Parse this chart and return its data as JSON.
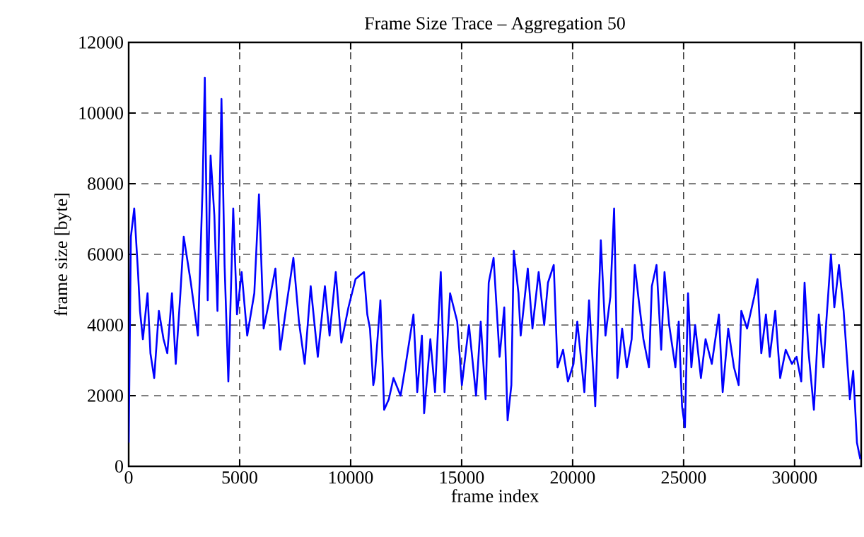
{
  "chart_data": {
    "type": "line",
    "title": "Frame Size Trace – Aggregation 50",
    "xlabel": "frame index",
    "ylabel": "frame size [byte]",
    "xlim": [
      0,
      33000
    ],
    "ylim": [
      0,
      12000
    ],
    "xticks": [
      0,
      5000,
      10000,
      15000,
      20000,
      25000,
      30000
    ],
    "yticks": [
      0,
      2000,
      4000,
      6000,
      8000,
      10000,
      12000
    ],
    "grid": true,
    "line_style": "solid",
    "marker": "none",
    "series": [
      {
        "color": "#0000ff",
        "x": [
          0,
          100,
          250,
          420,
          510,
          640,
          850,
          980,
          1150,
          1360,
          1570,
          1740,
          1950,
          2120,
          2330,
          2480,
          2800,
          3120,
          3330,
          3430,
          3560,
          3690,
          3860,
          4000,
          4180,
          4320,
          4490,
          4710,
          4880,
          5090,
          5340,
          5660,
          5870,
          6080,
          6400,
          6610,
          6830,
          7140,
          7420,
          7670,
          7930,
          8200,
          8520,
          8840,
          9050,
          9330,
          9580,
          9900,
          10220,
          10600,
          10750,
          10870,
          11020,
          11080,
          11340,
          11510,
          11720,
          11930,
          12250,
          12460,
          12830,
          13000,
          13210,
          13310,
          13590,
          13800,
          14060,
          14230,
          14480,
          14800,
          15010,
          15330,
          15650,
          15860,
          16080,
          16220,
          16440,
          16710,
          16920,
          17070,
          17240,
          17350,
          17560,
          17660,
          17980,
          18190,
          18470,
          18720,
          18890,
          19150,
          19320,
          19570,
          19790,
          20040,
          20210,
          20530,
          20740,
          21020,
          21270,
          21480,
          21700,
          21870,
          22020,
          22230,
          22440,
          22660,
          22800,
          22980,
          23190,
          23440,
          23570,
          23780,
          23990,
          24140,
          24350,
          24630,
          24780,
          24930,
          25060,
          25200,
          25350,
          25520,
          25780,
          25990,
          26270,
          26590,
          26760,
          27010,
          27270,
          27480,
          27600,
          27860,
          28180,
          28330,
          28500,
          28710,
          28880,
          29130,
          29350,
          29600,
          29880,
          30090,
          30300,
          30450,
          30620,
          30870,
          31090,
          31300,
          31430,
          31640,
          31790,
          32000,
          32210,
          32490,
          32640,
          32810,
          32960
        ],
        "values": [
          670,
          6500,
          7300,
          5500,
          4400,
          3600,
          4900,
          3200,
          2500,
          4400,
          3600,
          3200,
          4900,
          2900,
          4900,
          6500,
          5200,
          3700,
          7900,
          11000,
          4700,
          8800,
          7100,
          4400,
          10400,
          5700,
          2400,
          7300,
          4300,
          5500,
          3700,
          4900,
          7700,
          3900,
          4900,
          5600,
          3300,
          4700,
          5900,
          4100,
          2900,
          5100,
          3100,
          5100,
          3700,
          5500,
          3500,
          4500,
          5300,
          5500,
          4300,
          3900,
          2300,
          2500,
          4700,
          1600,
          1900,
          2500,
          2000,
          2800,
          4300,
          2100,
          3700,
          1500,
          3600,
          2100,
          5500,
          2100,
          4900,
          4100,
          2300,
          4000,
          2000,
          4100,
          1900,
          5200,
          5900,
          3100,
          4500,
          1300,
          2300,
          6100,
          4900,
          3700,
          5600,
          3900,
          5500,
          4000,
          5200,
          5700,
          2800,
          3300,
          2400,
          2900,
          4100,
          2100,
          4700,
          1700,
          6400,
          3700,
          4800,
          7300,
          2500,
          3900,
          2800,
          3600,
          5700,
          4700,
          3600,
          2800,
          5100,
          5700,
          3300,
          5500,
          4000,
          2800,
          4100,
          1700,
          1100,
          4900,
          2800,
          4000,
          2500,
          3600,
          2900,
          4300,
          2100,
          3900,
          2800,
          2300,
          4400,
          3900,
          4800,
          5300,
          3200,
          4300,
          3100,
          4400,
          2500,
          3300,
          2900,
          3100,
          2400,
          5200,
          3300,
          1600,
          4300,
          2800,
          4100,
          6000,
          4500,
          5700,
          4400,
          1900,
          2700,
          670,
          200
        ]
      }
    ]
  }
}
